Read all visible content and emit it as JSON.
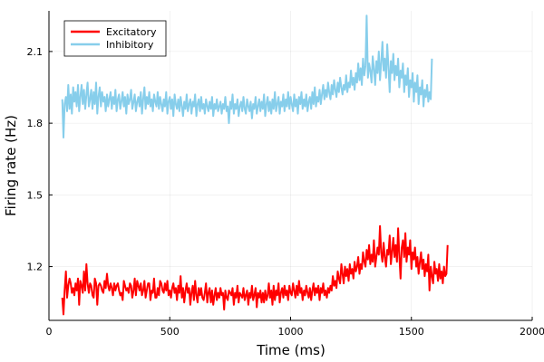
{
  "chart_data": {
    "type": "line",
    "title": "",
    "xlabel": "Time (ms)",
    "ylabel": "Firing rate (Hz)",
    "xlim": [
      0,
      2000
    ],
    "ylim": [
      0.975,
      2.27
    ],
    "xticks": [
      0,
      500,
      1000,
      1500,
      2000
    ],
    "yticks": [
      1.2,
      1.5,
      1.8,
      2.1
    ],
    "grid": true,
    "legend": "top-left",
    "series": [
      {
        "name": "Excitatory",
        "color": "#ff0000",
        "x_start": 55,
        "x_step": 5,
        "values": [
          1.07,
          1.0,
          1.1,
          1.18,
          1.07,
          1.12,
          1.15,
          1.13,
          1.09,
          1.11,
          1.08,
          1.13,
          1.1,
          1.15,
          1.04,
          1.14,
          1.12,
          1.09,
          1.18,
          1.1,
          1.21,
          1.13,
          1.09,
          1.13,
          1.12,
          1.08,
          1.07,
          1.15,
          1.13,
          1.04,
          1.12,
          1.13,
          1.12,
          1.1,
          1.09,
          1.14,
          1.11,
          1.17,
          1.12,
          1.1,
          1.13,
          1.11,
          1.08,
          1.13,
          1.1,
          1.12,
          1.13,
          1.1,
          1.08,
          1.09,
          1.06,
          1.14,
          1.12,
          1.1,
          1.11,
          1.09,
          1.13,
          1.12,
          1.07,
          1.1,
          1.15,
          1.08,
          1.14,
          1.12,
          1.1,
          1.13,
          1.08,
          1.1,
          1.14,
          1.07,
          1.1,
          1.13,
          1.13,
          1.06,
          1.1,
          1.09,
          1.15,
          1.07,
          1.07,
          1.11,
          1.08,
          1.14,
          1.13,
          1.1,
          1.09,
          1.13,
          1.1,
          1.14,
          1.08,
          1.1,
          1.07,
          1.11,
          1.13,
          1.09,
          1.11,
          1.06,
          1.12,
          1.09,
          1.16,
          1.07,
          1.11,
          1.05,
          1.1,
          1.13,
          1.09,
          1.11,
          1.04,
          1.09,
          1.12,
          1.06,
          1.14,
          1.08,
          1.05,
          1.11,
          1.08,
          1.11,
          1.07,
          1.06,
          1.09,
          1.13,
          1.05,
          1.09,
          1.11,
          1.05,
          1.1,
          1.04,
          1.08,
          1.11,
          1.06,
          1.09,
          1.07,
          1.11,
          1.08,
          1.09,
          1.02,
          1.1,
          1.07,
          1.06,
          1.1,
          1.09,
          1.08,
          1.11,
          1.04,
          1.09,
          1.07,
          1.12,
          1.05,
          1.09,
          1.08,
          1.07,
          1.11,
          1.06,
          1.08,
          1.1,
          1.04,
          1.09,
          1.07,
          1.12,
          1.06,
          1.08,
          1.11,
          1.03,
          1.09,
          1.07,
          1.1,
          1.05,
          1.09,
          1.05,
          1.1,
          1.06,
          1.08,
          1.13,
          1.07,
          1.1,
          1.04,
          1.12,
          1.06,
          1.1,
          1.08,
          1.13,
          1.05,
          1.09,
          1.11,
          1.07,
          1.12,
          1.08,
          1.1,
          1.06,
          1.12,
          1.09,
          1.08,
          1.13,
          1.1,
          1.07,
          1.12,
          1.08,
          1.14,
          1.09,
          1.11,
          1.06,
          1.1,
          1.08,
          1.12,
          1.09,
          1.07,
          1.11,
          1.06,
          1.1,
          1.13,
          1.08,
          1.11,
          1.09,
          1.12,
          1.06,
          1.11,
          1.09,
          1.13,
          1.08,
          1.1,
          1.07,
          1.11,
          1.09,
          1.12,
          1.1,
          1.16,
          1.12,
          1.14,
          1.11,
          1.18,
          1.15,
          1.13,
          1.21,
          1.17,
          1.13,
          1.2,
          1.16,
          1.19,
          1.14,
          1.21,
          1.17,
          1.19,
          1.15,
          1.22,
          1.18,
          1.2,
          1.24,
          1.17,
          1.21,
          1.19,
          1.26,
          1.22,
          1.2,
          1.27,
          1.23,
          1.29,
          1.21,
          1.25,
          1.22,
          1.31,
          1.2,
          1.24,
          1.28,
          1.25,
          1.37,
          1.26,
          1.22,
          1.3,
          1.24,
          1.2,
          1.27,
          1.25,
          1.33,
          1.21,
          1.26,
          1.32,
          1.24,
          1.29,
          1.22,
          1.36,
          1.25,
          1.15,
          1.28,
          1.31,
          1.24,
          1.34,
          1.22,
          1.28,
          1.25,
          1.31,
          1.19,
          1.26,
          1.23,
          1.28,
          1.2,
          1.24,
          1.17,
          1.22,
          1.26,
          1.19,
          1.23,
          1.16,
          1.21,
          1.18,
          1.25,
          1.1,
          1.2,
          1.16,
          1.13,
          1.22,
          1.17,
          1.19,
          1.14,
          1.21,
          1.15,
          1.18,
          1.13,
          1.2,
          1.16,
          1.17,
          1.29
        ]
      },
      {
        "name": "Inhibitory",
        "color": "#87ceeb",
        "x_start": 55,
        "x_step": 5,
        "values": [
          1.9,
          1.74,
          1.88,
          1.91,
          1.85,
          1.96,
          1.86,
          1.92,
          1.84,
          1.95,
          1.89,
          1.93,
          1.87,
          1.96,
          1.85,
          1.91,
          1.96,
          1.88,
          1.94,
          1.86,
          1.92,
          1.97,
          1.87,
          1.9,
          1.94,
          1.86,
          1.93,
          1.88,
          1.97,
          1.84,
          1.91,
          1.95,
          1.87,
          1.93,
          1.89,
          1.91,
          1.85,
          1.92,
          1.87,
          1.9,
          1.93,
          1.86,
          1.91,
          1.88,
          1.94,
          1.85,
          1.9,
          1.92,
          1.86,
          1.89,
          1.93,
          1.87,
          1.91,
          1.84,
          1.92,
          1.88,
          1.9,
          1.94,
          1.86,
          1.89,
          1.92,
          1.85,
          1.89,
          1.91,
          1.87,
          1.93,
          1.84,
          1.9,
          1.95,
          1.86,
          1.91,
          1.88,
          1.93,
          1.87,
          1.9,
          1.85,
          1.92,
          1.89,
          1.87,
          1.93,
          1.86,
          1.91,
          1.88,
          1.85,
          1.9,
          1.87,
          1.93,
          1.84,
          1.89,
          1.91,
          1.86,
          1.9,
          1.83,
          1.92,
          1.88,
          1.86,
          1.9,
          1.85,
          1.91,
          1.87,
          1.83,
          1.89,
          1.86,
          1.92,
          1.85,
          1.88,
          1.9,
          1.84,
          1.89,
          1.87,
          1.92,
          1.83,
          1.88,
          1.9,
          1.85,
          1.91,
          1.86,
          1.88,
          1.84,
          1.9,
          1.87,
          1.85,
          1.89,
          1.86,
          1.91,
          1.83,
          1.88,
          1.86,
          1.9,
          1.85,
          1.87,
          1.89,
          1.84,
          1.88,
          1.86,
          1.91,
          1.85,
          1.87,
          1.8,
          1.89,
          1.86,
          1.92,
          1.84,
          1.88,
          1.86,
          1.9,
          1.83,
          1.87,
          1.89,
          1.85,
          1.91,
          1.86,
          1.84,
          1.9,
          1.87,
          1.85,
          1.89,
          1.82,
          1.88,
          1.86,
          1.91,
          1.84,
          1.87,
          1.9,
          1.85,
          1.89,
          1.86,
          1.92,
          1.83,
          1.88,
          1.91,
          1.85,
          1.89,
          1.84,
          1.9,
          1.86,
          1.93,
          1.85,
          1.88,
          1.91,
          1.84,
          1.89,
          1.87,
          1.92,
          1.85,
          1.9,
          1.87,
          1.93,
          1.86,
          1.91,
          1.88,
          1.85,
          1.92,
          1.87,
          1.9,
          1.84,
          1.91,
          1.88,
          1.93,
          1.86,
          1.9,
          1.87,
          1.92,
          1.85,
          1.89,
          1.91,
          1.86,
          1.93,
          1.88,
          1.95,
          1.87,
          1.91,
          1.89,
          1.94,
          1.88,
          1.92,
          1.96,
          1.9,
          1.94,
          1.91,
          1.97,
          1.93,
          1.9,
          1.96,
          1.92,
          1.98,
          1.94,
          1.91,
          1.97,
          1.93,
          1.99,
          1.95,
          1.92,
          1.96,
          1.94,
          2.0,
          1.93,
          1.97,
          1.95,
          2.02,
          1.96,
          1.99,
          1.94,
          2.01,
          1.97,
          2.05,
          1.98,
          2.03,
          1.96,
          2.07,
          2.0,
          2.04,
          2.25,
          1.99,
          2.05,
          2.02,
          1.97,
          2.08,
          2.03,
          1.96,
          2.06,
          2.01,
          2.1,
          1.98,
          2.05,
          2.14,
          2.02,
          2.07,
          1.99,
          2.13,
          2.04,
          1.93,
          2.06,
          2.01,
          2.09,
          1.98,
          2.04,
          2.0,
          2.07,
          1.95,
          2.02,
          1.99,
          2.05,
          1.93,
          2.0,
          1.96,
          2.03,
          1.91,
          1.98,
          1.95,
          2.01,
          1.89,
          1.97,
          1.93,
          2.0,
          1.88,
          1.95,
          1.92,
          1.98,
          1.87,
          1.94,
          1.91,
          1.96,
          1.89,
          1.93,
          1.9,
          2.07
        ]
      }
    ]
  }
}
